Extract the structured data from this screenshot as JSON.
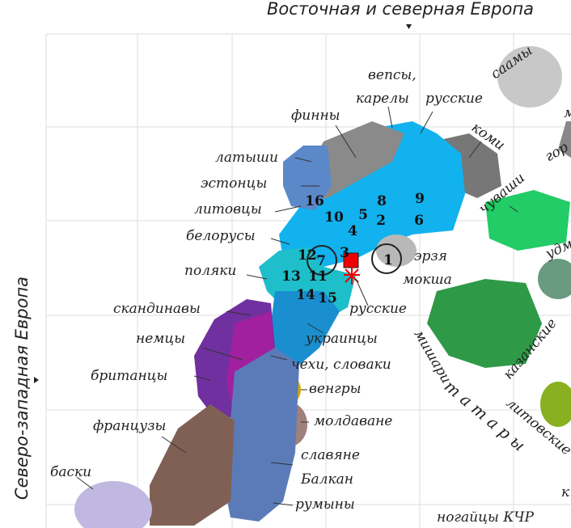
{
  "axes": {
    "top": "Восточная и северная Европа",
    "left": "Северо-западная Европа"
  },
  "labels": [
    "саамы",
    "вепсы,",
    "карелы",
    "русские",
    "финны",
    "коми",
    "гор",
    "латыши",
    "эстонцы",
    "литовцы",
    "белорусы",
    "поляки",
    "скандинавы",
    "немцы",
    "британцы",
    "французы",
    "баски",
    "украинцы",
    "чехи, словаки",
    "венгры",
    "молдаване",
    "славяне",
    "Балкан",
    "румыны",
    "русские",
    "эрзя",
    "мокша",
    "чуваши",
    "удм",
    "мишари",
    "казанские",
    "т а т а р ы",
    "литовские",
    "ногайцы КЧР",
    "м",
    "к"
  ],
  "numbers": [
    16,
    8,
    9,
    10,
    5,
    2,
    6,
    4,
    12,
    3,
    1,
    7,
    13,
    11,
    14,
    15
  ]
}
